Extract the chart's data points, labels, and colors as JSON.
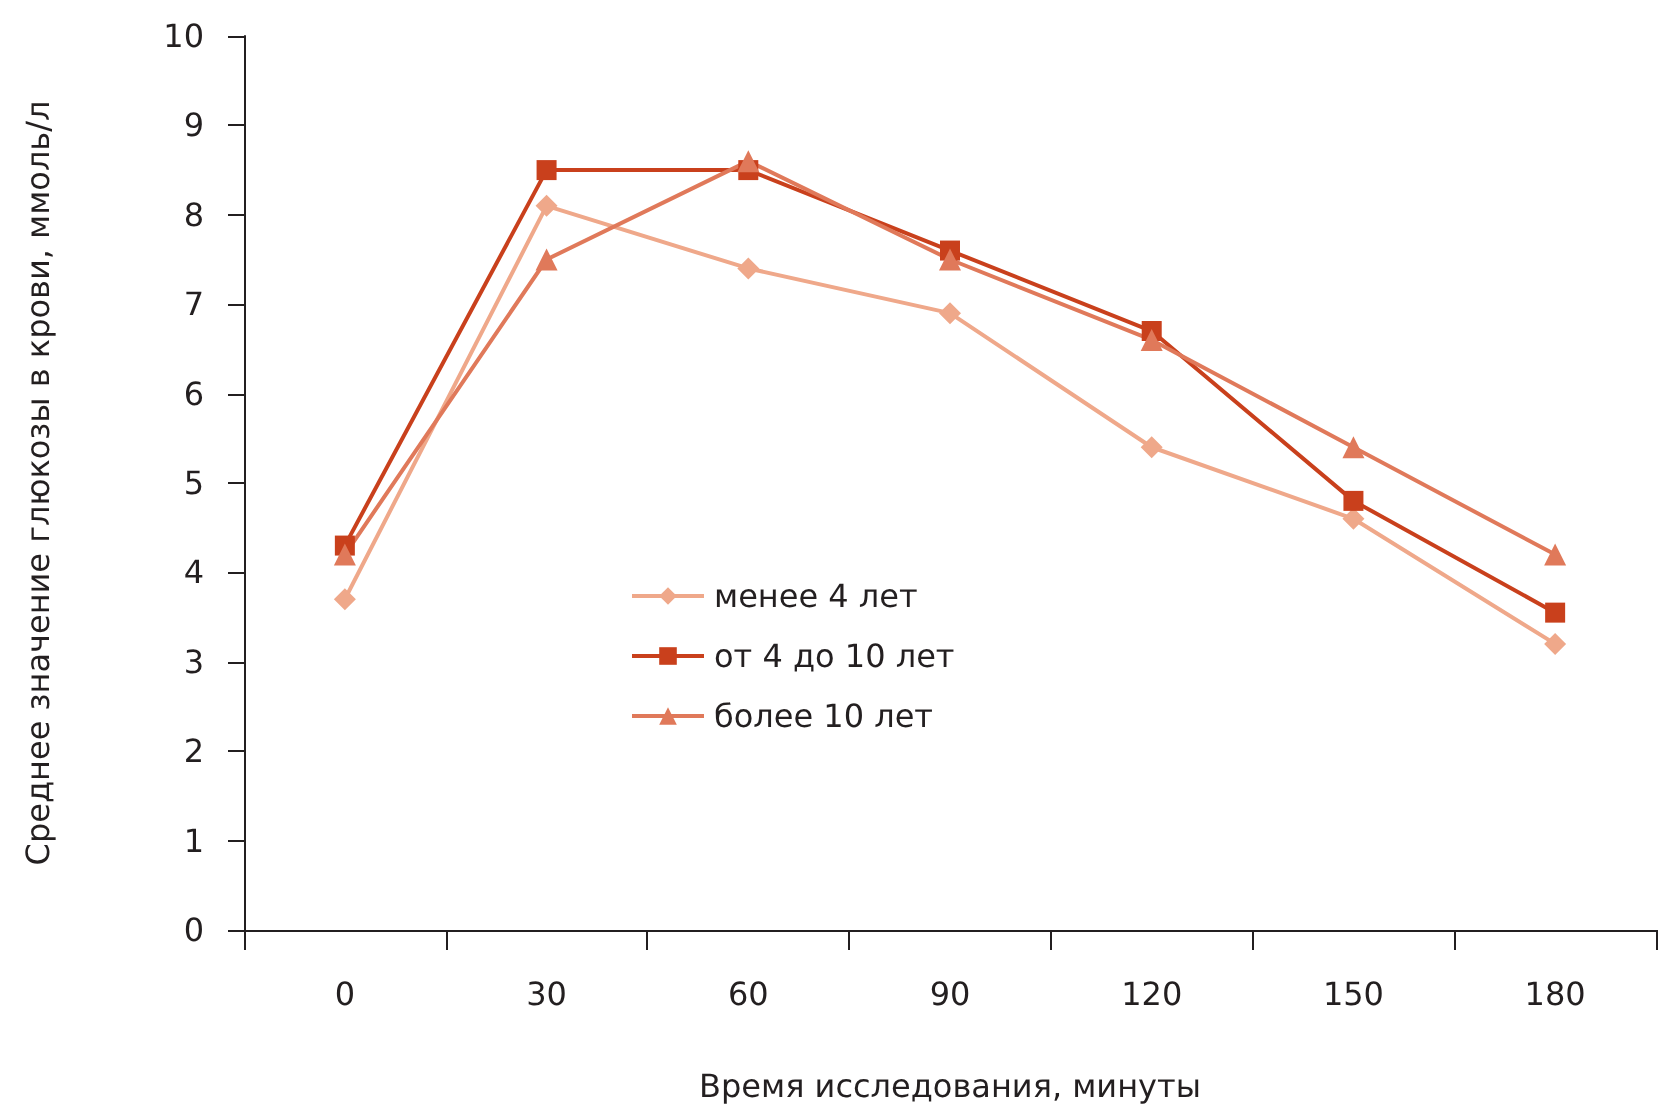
{
  "chart_data": {
    "type": "line",
    "xlabel": "Время исследования, минуты",
    "ylabel": "Среднее значение глюкозы в крови, ммоль/л",
    "categories": [
      "0",
      "30",
      "60",
      "90",
      "120",
      "150",
      "180"
    ],
    "ylim": [
      0,
      10
    ],
    "yticks": [
      0,
      1,
      2,
      3,
      4,
      5,
      6,
      7,
      8,
      9,
      10
    ],
    "grid": false,
    "legend": "center",
    "series": [
      {
        "name": "менее 4 лет",
        "color": "#efa88a",
        "marker": "diamond",
        "values": [
          3.7,
          8.1,
          7.4,
          6.9,
          5.4,
          4.6,
          3.2
        ]
      },
      {
        "name": "от 4 до 10 лет",
        "color": "#c9401c",
        "marker": "square",
        "values": [
          4.3,
          8.5,
          8.5,
          7.6,
          6.7,
          4.8,
          3.55
        ]
      },
      {
        "name": "более 10 лет",
        "color": "#e0795a",
        "marker": "triangle",
        "values": [
          4.2,
          7.5,
          8.6,
          7.5,
          6.6,
          5.4,
          4.2
        ]
      }
    ]
  }
}
